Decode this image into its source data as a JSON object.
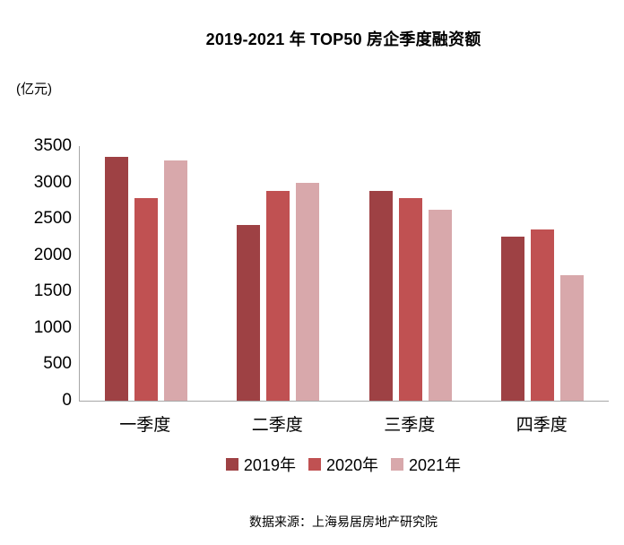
{
  "title": "2019-2021 年 TOP50 房企季度融资额",
  "unit_label": "(亿元)",
  "source": "数据来源：上海易居房地产研究院",
  "colors": {
    "series_2019": "#9e4144",
    "series_2020": "#c05152",
    "series_2021": "#d8a8ab",
    "axis_line": "#a6a6a6",
    "text": "#000000"
  },
  "chart_data": {
    "type": "bar",
    "title": "2019-2021 年 TOP50 房企季度融资额",
    "xlabel": "",
    "ylabel": "(亿元)",
    "categories": [
      "一季度",
      "二季度",
      "三季度",
      "四季度"
    ],
    "series": [
      {
        "name": "2019年",
        "color": "#9e4144",
        "values": [
          3350,
          2420,
          2880,
          2260
        ]
      },
      {
        "name": "2020年",
        "color": "#c05152",
        "values": [
          2790,
          2880,
          2780,
          2350
        ]
      },
      {
        "name": "2021年",
        "color": "#d8a8ab",
        "values": [
          3300,
          3000,
          2620,
          1720
        ]
      }
    ],
    "ylim": [
      0,
      3500
    ],
    "ytick_step": 500,
    "ytick_labels": [
      "0",
      "500",
      "1000",
      "1500",
      "2000",
      "2500",
      "3000",
      "3500"
    ],
    "grid": false,
    "legend_position": "bottom"
  }
}
